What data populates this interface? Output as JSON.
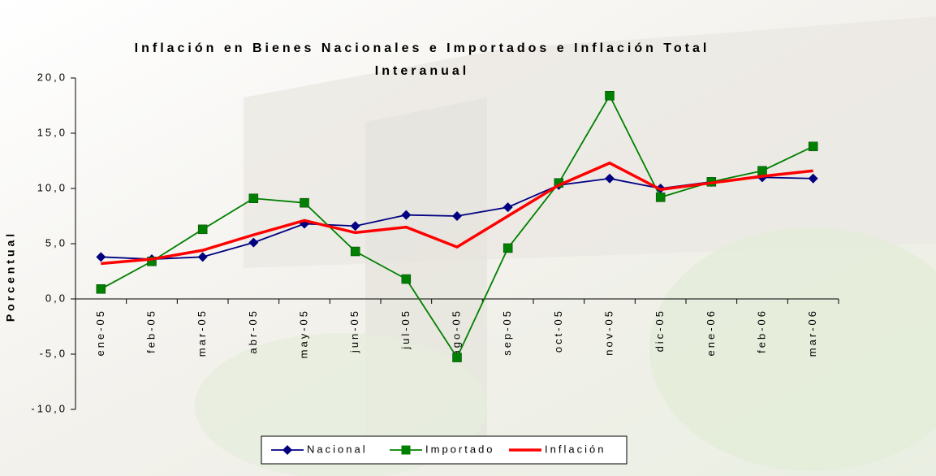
{
  "chart_data": {
    "type": "line",
    "title_lines": [
      "Inflación en Bienes Nacionales e Importados e Inflación Total",
      "Interanual"
    ],
    "y_label": "Porcentual",
    "categories": [
      "ene-05",
      "feb-05",
      "mar-05",
      "abr-05",
      "may-05",
      "jun-05",
      "jul-05",
      "ago-05",
      "sep-05",
      "oct-05",
      "nov-05",
      "dic-05",
      "ene-06",
      "feb-06",
      "mar-06"
    ],
    "series": [
      {
        "name": "Nacional",
        "color": "#000080",
        "marker": "diamond",
        "values": [
          3.8,
          3.6,
          3.8,
          5.1,
          6.8,
          6.6,
          7.6,
          7.5,
          8.3,
          10.3,
          10.9,
          10.0,
          10.6,
          11.0,
          10.9
        ]
      },
      {
        "name": "Importado",
        "color": "#008000",
        "marker": "square",
        "values": [
          0.9,
          3.4,
          6.3,
          9.1,
          8.7,
          4.3,
          1.8,
          -5.3,
          4.6,
          10.5,
          18.4,
          9.2,
          10.6,
          11.6,
          13.8
        ]
      },
      {
        "name": "Inflación",
        "color": "#ff0000",
        "marker": "none",
        "values": [
          3.2,
          3.6,
          4.4,
          5.8,
          7.1,
          6.0,
          6.5,
          4.7,
          7.5,
          10.3,
          12.3,
          9.9,
          10.5,
          11.1,
          11.6
        ]
      }
    ],
    "ylim": [
      -10,
      20
    ],
    "yticks": [
      {
        "value": -10,
        "label": "-10,0"
      },
      {
        "value": -5,
        "label": "-5,0"
      },
      {
        "value": 0,
        "label": "0,0"
      },
      {
        "value": 5,
        "label": "5,0"
      },
      {
        "value": 10,
        "label": "10,0"
      },
      {
        "value": 15,
        "label": "15,0"
      },
      {
        "value": 20,
        "label": "20,0"
      }
    ],
    "legend": "bottom"
  }
}
